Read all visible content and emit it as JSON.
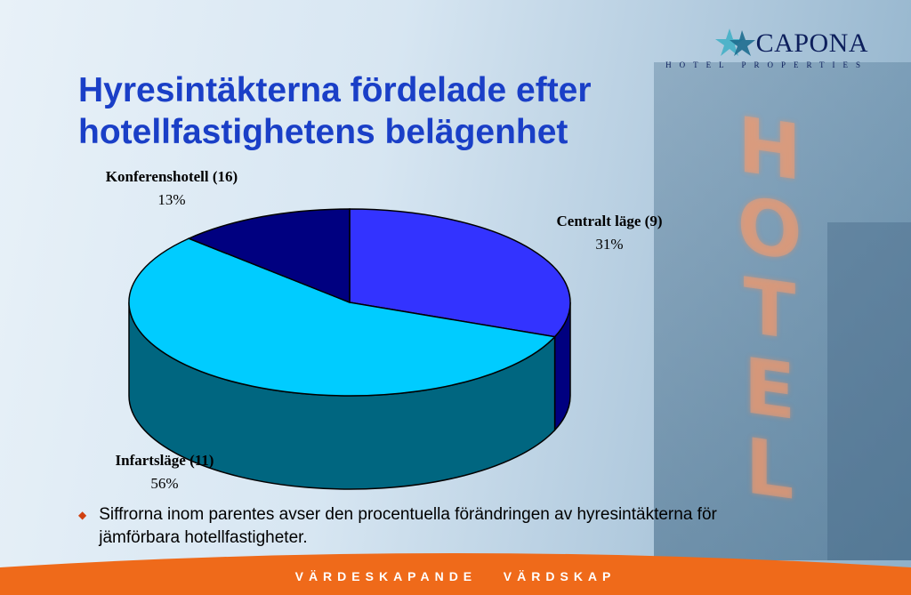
{
  "slide": {
    "title_line1": "Hyresintäkterna fördelade efter",
    "title_line2": "hotellfastighetens belägenhet",
    "note": "Siffrorna inom parentes avser den procentuella förändringen av hyresintäkterna för jämförbara hotellfastigheter.",
    "footer": "VÄRDESKAPANDE VÄRDSKAP",
    "logo_name": "CAPONA",
    "logo_sub": "HOTEL PROPERTIES",
    "background_sign": [
      "H",
      "O",
      "T",
      "E",
      "L"
    ]
  },
  "chart_data": {
    "type": "pie",
    "style": "3d",
    "slices": [
      {
        "label": "Centralt läge (9)",
        "pct_text": "31%",
        "value": 31,
        "color": "#3333ff"
      },
      {
        "label": "Infartsläge (11)",
        "pct_text": "56%",
        "value": 56,
        "color": "#00ccff"
      },
      {
        "label": "Konferenshotell (16)",
        "pct_text": "13%",
        "value": 13,
        "color": "#000080"
      }
    ],
    "side_colors": {
      "Centralt läge (9)": "#000080",
      "Infartsläge (11)": "#006680",
      "Konferenshotell (16)": "#000060"
    }
  },
  "colors": {
    "title": "#1a3fc7",
    "footer_bar": "#ef6a1a",
    "bullet": "#d04010"
  }
}
